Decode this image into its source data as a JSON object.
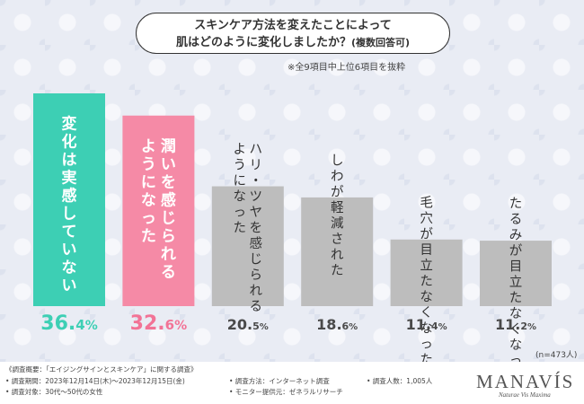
{
  "title": {
    "line1": "スキンケア方法を変えたことによって",
    "line2": "肌はどのように変化しましたか？",
    "line2_suffix": "(複数回答可)"
  },
  "note": "※全9項目中上位6項目を抜粋",
  "chart_data": {
    "type": "bar",
    "categories": [
      "変化は実感していない",
      "潤いを感じられるようになった",
      "ハリ・ツヤを感じられるようになった",
      "しわが軽減された",
      "毛穴が目立たなくなった",
      "たるみが目立たなくなった"
    ],
    "category_lines": [
      [
        "変化は実感していない"
      ],
      [
        "潤いを感じられる",
        "ようになった"
      ],
      [
        "ハリ・ツヤを感じられる",
        "ようになった"
      ],
      [
        "しわが軽減された"
      ],
      [
        "毛穴が目立たなくなった"
      ],
      [
        "たるみが目立たなくなった"
      ]
    ],
    "values": [
      36.4,
      32.6,
      20.5,
      18.6,
      11.4,
      11.2
    ],
    "value_labels": [
      {
        "int": "36.",
        "dec": "4",
        "unit": "%"
      },
      {
        "int": "32.",
        "dec": "6",
        "unit": "%"
      },
      {
        "int": "20.",
        "dec": "5",
        "unit": "%"
      },
      {
        "int": "18.",
        "dec": "6",
        "unit": "%"
      },
      {
        "int": "11.",
        "dec": "4",
        "unit": "%"
      },
      {
        "int": "11.",
        "dec": "2",
        "unit": "%"
      }
    ],
    "colors": [
      "#3dcfb4",
      "#f58aa6",
      "#bdbdbd",
      "#bdbdbd",
      "#bdbdbd",
      "#bdbdbd"
    ],
    "label_colors": [
      "#3dcfb4",
      "#f27396",
      "#4a4a4a",
      "#4a4a4a",
      "#4a4a4a",
      "#4a4a4a"
    ],
    "ylim": [
      0,
      36.4
    ]
  },
  "sample_size": "(n=473人)",
  "footer": {
    "heading": "《調査概要：「エイジングサインとスキンケア」に関する調査》",
    "period": "• 調査期間：2023年12月14日(木)〜2023年12月15日(金)",
    "method": "• 調査方法：インターネット調査",
    "count": "• 調査人数：1,005人",
    "target": "• 調査対象：30代〜50代の女性",
    "provider": "• モニター提供元：ゼネラルリサーチ"
  },
  "brand": {
    "logo": "MANAVÍS",
    "tagline": "Naturae Vis Maxima"
  }
}
